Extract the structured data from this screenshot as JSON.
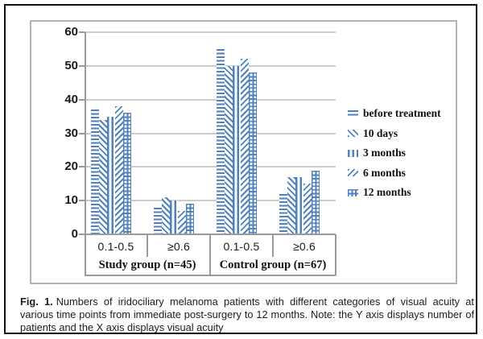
{
  "figure": {
    "caption_label": "Fig. 1.",
    "caption_text": "Numbers of iridociliary melanoma patients with different categories of visual acuity at various time points from immediate post-surgery to 12 months. Note: the Y axis displays number of patients and the X axis displays visual acuity"
  },
  "chart_data": {
    "type": "bar",
    "title": "",
    "xlabel": "visual acuity",
    "ylabel": "number of patients",
    "ylim": [
      0,
      60
    ],
    "y_ticks": [
      0,
      10,
      20,
      30,
      40,
      50,
      60
    ],
    "grid": true,
    "legend_position": "right",
    "bar_color": "#4f81bd",
    "gridline_color": "#cccccc",
    "groups": [
      {
        "label": "Study group (n=45)",
        "categories": [
          "0.1-0.5",
          "≥0.6"
        ]
      },
      {
        "label": "Control group (n=67)",
        "categories": [
          "0.1-0.5",
          "≥0.6"
        ]
      }
    ],
    "series": [
      {
        "name": "before treatment",
        "pattern": "horizontal",
        "values": [
          37,
          8,
          55,
          12
        ]
      },
      {
        "name": "10 days",
        "pattern": "diagonal-down",
        "values": [
          34,
          11,
          50,
          17
        ]
      },
      {
        "name": "3 months",
        "pattern": "vertical",
        "values": [
          35,
          10,
          50,
          17
        ]
      },
      {
        "name": "6 months",
        "pattern": "diagonal-up",
        "values": [
          38,
          7,
          52,
          15
        ]
      },
      {
        "name": "12 months",
        "pattern": "grid",
        "values": [
          36,
          9,
          48,
          19
        ]
      }
    ]
  }
}
